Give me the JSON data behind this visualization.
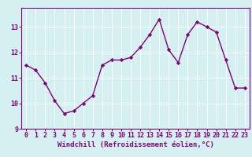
{
  "x": [
    0,
    1,
    2,
    3,
    4,
    5,
    6,
    7,
    8,
    9,
    10,
    11,
    12,
    13,
    14,
    15,
    16,
    17,
    18,
    19,
    20,
    21,
    22,
    23
  ],
  "y": [
    11.5,
    11.3,
    10.8,
    10.1,
    9.6,
    9.7,
    10.0,
    10.3,
    11.5,
    11.7,
    11.7,
    11.8,
    12.2,
    12.7,
    13.3,
    12.1,
    11.6,
    12.7,
    13.2,
    13.0,
    12.8,
    11.7,
    10.6,
    10.6
  ],
  "line_color": "#800080",
  "marker": "D",
  "marker_size": 2.2,
  "line_width": 1.0,
  "xlabel": "Windchill (Refroidissement éolien,°C)",
  "xlabel_fontsize": 6.5,
  "xlim": [
    -0.5,
    23.5
  ],
  "ylim": [
    9.0,
    13.75
  ],
  "yticks": [
    9,
    10,
    11,
    12,
    13
  ],
  "xticks": [
    0,
    1,
    2,
    3,
    4,
    5,
    6,
    7,
    8,
    9,
    10,
    11,
    12,
    13,
    14,
    15,
    16,
    17,
    18,
    19,
    20,
    21,
    22,
    23
  ],
  "tick_fontsize": 6.0,
  "bg_color": "#d5f0f0",
  "grid_color": "#ffffff",
  "grid_linewidth": 0.7,
  "axes_color": "#800080",
  "label_color": "#800080",
  "spine_linewidth": 0.8
}
